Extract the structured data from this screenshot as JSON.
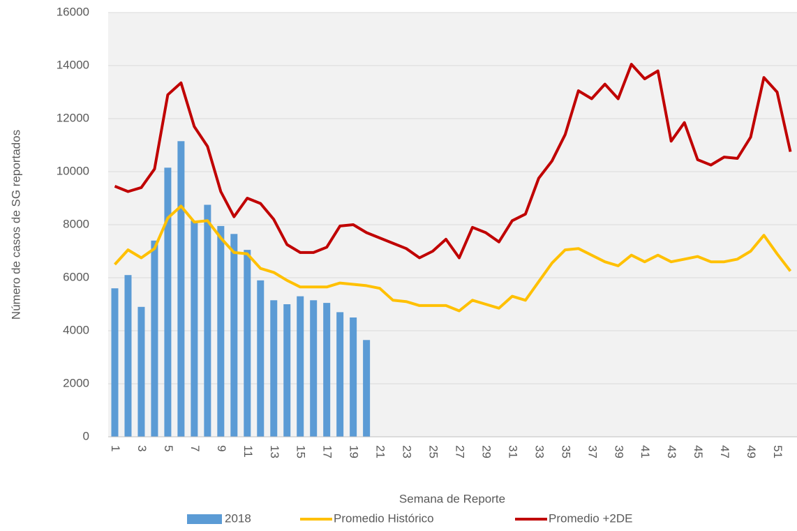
{
  "chart_data": {
    "type": "combo",
    "x_label": "Semana de Reporte",
    "y_label": "Número de casos de  SG  reportados",
    "categories": [
      "1",
      null,
      "3",
      null,
      "5",
      null,
      "7",
      null,
      "9",
      null,
      "11",
      null,
      "13",
      null,
      "15",
      null,
      "17",
      null,
      "19",
      null,
      "21",
      null,
      "23",
      null,
      "25",
      null,
      "27",
      null,
      "29",
      null,
      "31",
      null,
      "33",
      null,
      "35",
      null,
      "37",
      null,
      "39",
      null,
      "41",
      null,
      "43",
      null,
      "45",
      null,
      "47",
      null,
      "49",
      null,
      "51",
      null
    ],
    "series": [
      {
        "name": "2018",
        "type": "bar",
        "color": "#5b9bd5",
        "values": [
          5600,
          6100,
          4900,
          7400,
          10150,
          11150,
          8150,
          8750,
          7950,
          7650,
          7050,
          5900,
          5150,
          5000,
          5300,
          5150,
          5050,
          4700,
          4500,
          3650,
          null,
          null,
          null,
          null,
          null,
          null,
          null,
          null,
          null,
          null,
          null,
          null,
          null,
          null,
          null,
          null,
          null,
          null,
          null,
          null,
          null,
          null,
          null,
          null,
          null,
          null,
          null,
          null,
          null,
          null,
          null,
          null
        ]
      },
      {
        "name": "Promedio Histórico",
        "type": "line",
        "color": "#ffc000",
        "values": [
          6500,
          7050,
          6750,
          7100,
          8250,
          8700,
          8100,
          8150,
          7500,
          6950,
          6900,
          6350,
          6200,
          5900,
          5650,
          5650,
          5650,
          5800,
          5750,
          5700,
          5600,
          5150,
          5100,
          4950,
          4950,
          4950,
          4750,
          5150,
          5000,
          4850,
          5300,
          5150,
          5850,
          6550,
          7050,
          7100,
          6850,
          6600,
          6450,
          6850,
          6600,
          6850,
          6600,
          6700,
          6800,
          6600,
          6600,
          6700,
          7000,
          7600,
          6900,
          6250
        ]
      },
      {
        "name": "Promedio +2DE",
        "type": "line",
        "color": "#c00000",
        "values": [
          9450,
          9250,
          9400,
          10100,
          12900,
          13350,
          11700,
          10950,
          9250,
          8300,
          9000,
          8800,
          8200,
          7250,
          6950,
          6950,
          7150,
          7950,
          8000,
          7700,
          7500,
          7300,
          7100,
          6750,
          7000,
          7450,
          6750,
          7900,
          7700,
          7350,
          8150,
          8400,
          9750,
          10400,
          11400,
          13050,
          12750,
          13300,
          12750,
          14050,
          13500,
          13800,
          11150,
          11850,
          10450,
          10250,
          10550,
          10500,
          11300,
          13550,
          13000,
          10750
        ]
      }
    ],
    "ylim": [
      0,
      16000
    ],
    "yticks": [
      0,
      2000,
      4000,
      6000,
      8000,
      10000,
      12000,
      14000,
      16000
    ],
    "grid": true,
    "legend": "bottom"
  }
}
